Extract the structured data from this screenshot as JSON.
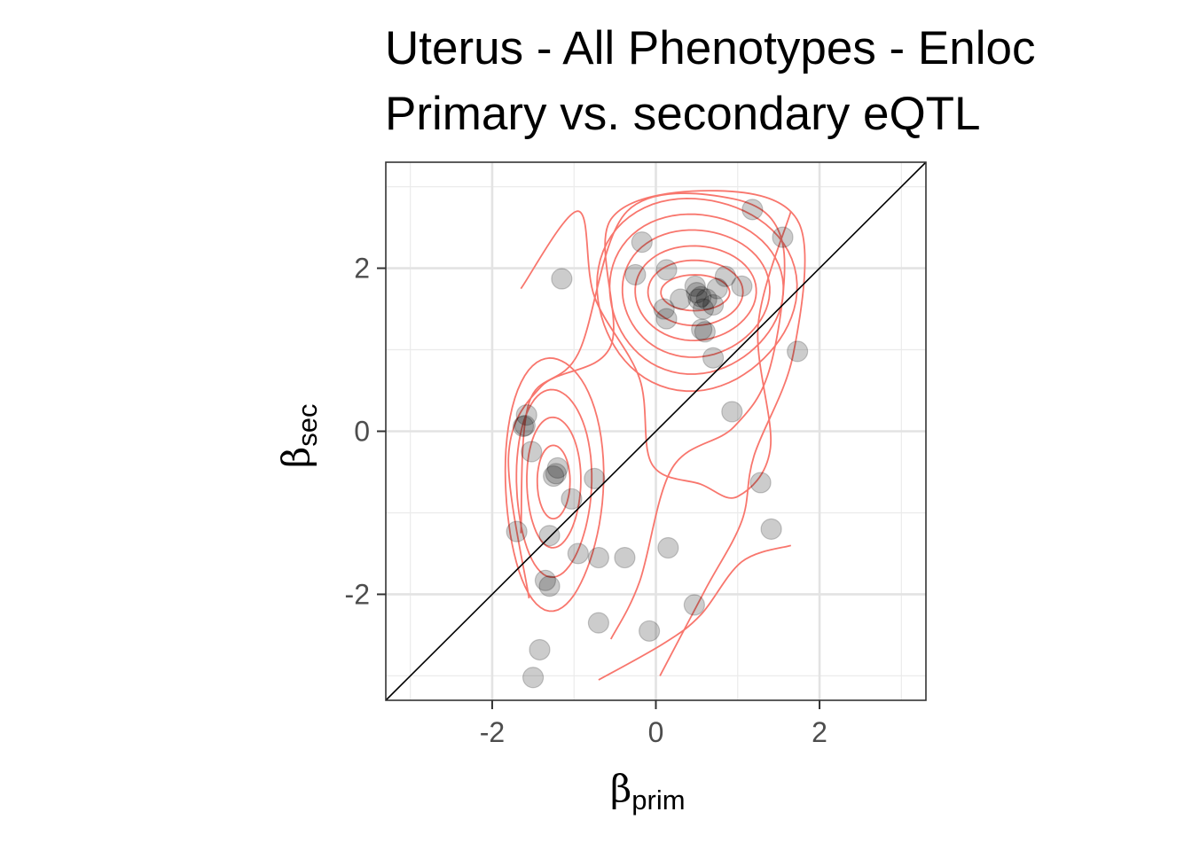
{
  "chart_data": {
    "type": "scatter",
    "title": "Uterus - All Phenotypes - Enloc",
    "subtitle": "Primary vs. secondary eQTL",
    "xlabel": {
      "symbol": "β",
      "subscript": "prim"
    },
    "ylabel": {
      "symbol": "β",
      "subscript": "sec"
    },
    "xlim": [
      -3.3,
      3.3
    ],
    "ylim": [
      -3.3,
      3.3
    ],
    "xticks": [
      -2,
      0,
      2
    ],
    "yticks": [
      -2,
      0,
      2
    ],
    "grid": true,
    "reference_line": {
      "type": "identity",
      "color": "#000000"
    },
    "points": [
      {
        "x": 1.18,
        "y": 2.72
      },
      {
        "x": 1.55,
        "y": 2.38
      },
      {
        "x": -0.17,
        "y": 2.32
      },
      {
        "x": -0.25,
        "y": 1.92
      },
      {
        "x": 0.13,
        "y": 1.98
      },
      {
        "x": 0.85,
        "y": 1.9
      },
      {
        "x": 1.05,
        "y": 1.78
      },
      {
        "x": 0.75,
        "y": 1.75
      },
      {
        "x": 0.48,
        "y": 1.78
      },
      {
        "x": 0.5,
        "y": 1.7
      },
      {
        "x": 0.55,
        "y": 1.65
      },
      {
        "x": 0.52,
        "y": 1.62
      },
      {
        "x": 0.3,
        "y": 1.62
      },
      {
        "x": 0.62,
        "y": 1.62
      },
      {
        "x": 0.7,
        "y": 1.55
      },
      {
        "x": 0.58,
        "y": 1.5
      },
      {
        "x": 0.1,
        "y": 1.5
      },
      {
        "x": 0.13,
        "y": 1.38
      },
      {
        "x": 0.56,
        "y": 1.25
      },
      {
        "x": 0.6,
        "y": 1.22
      },
      {
        "x": -1.15,
        "y": 1.87
      },
      {
        "x": 1.73,
        "y": 0.98
      },
      {
        "x": 0.7,
        "y": 0.9
      },
      {
        "x": 0.93,
        "y": 0.24
      },
      {
        "x": -1.58,
        "y": 0.2
      },
      {
        "x": -1.6,
        "y": 0.07
      },
      {
        "x": -1.62,
        "y": 0.06
      },
      {
        "x": -1.52,
        "y": -0.25
      },
      {
        "x": -1.2,
        "y": -0.45
      },
      {
        "x": -1.22,
        "y": -0.52
      },
      {
        "x": -1.25,
        "y": -0.55
      },
      {
        "x": -0.75,
        "y": -0.58
      },
      {
        "x": -1.03,
        "y": -0.83
      },
      {
        "x": 1.28,
        "y": -0.63
      },
      {
        "x": -1.7,
        "y": -1.23
      },
      {
        "x": -1.3,
        "y": -1.28
      },
      {
        "x": 1.41,
        "y": -1.2
      },
      {
        "x": 0.15,
        "y": -1.43
      },
      {
        "x": -0.95,
        "y": -1.5
      },
      {
        "x": -0.7,
        "y": -1.55
      },
      {
        "x": -0.38,
        "y": -1.55
      },
      {
        "x": -1.35,
        "y": -1.83
      },
      {
        "x": -1.3,
        "y": -1.9
      },
      {
        "x": 0.47,
        "y": -2.13
      },
      {
        "x": -0.7,
        "y": -2.35
      },
      {
        "x": -0.08,
        "y": -2.45
      },
      {
        "x": -1.42,
        "y": -2.68
      },
      {
        "x": -1.5,
        "y": -3.02
      }
    ],
    "point_style": {
      "color": "#000000",
      "opacity": 0.2
    },
    "density_contours": {
      "color": "#f8766d",
      "modes": [
        {
          "center": [
            0.48,
            1.7
          ],
          "rx": [
            0.42,
            0.58,
            0.74,
            0.9,
            1.06,
            1.22
          ],
          "ry": [
            0.22,
            0.4,
            0.58,
            0.78,
            0.98,
            1.18
          ]
        },
        {
          "center": [
            -1.25,
            -0.62
          ],
          "rx": [
            0.2,
            0.33,
            0.46,
            0.6
          ],
          "ry": [
            0.45,
            0.8,
            1.15,
            1.55
          ]
        }
      ],
      "outer_levels": 4
    }
  }
}
